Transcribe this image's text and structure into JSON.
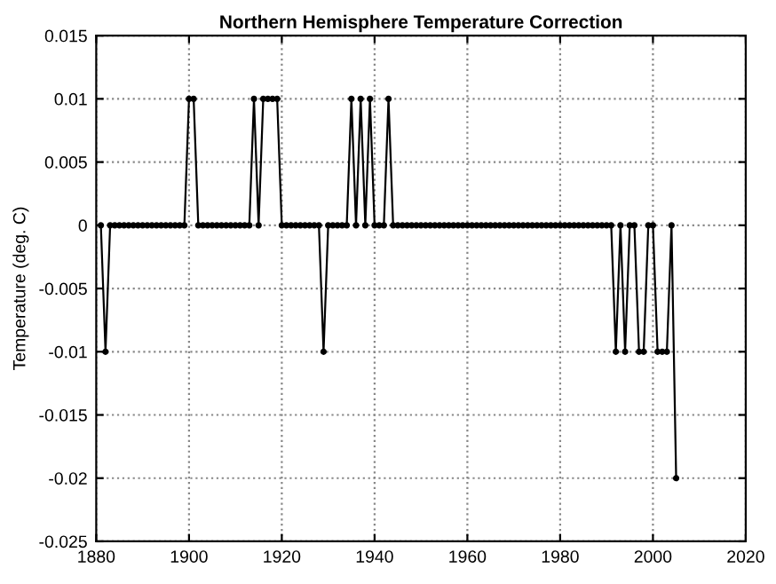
{
  "chart_data": {
    "type": "line",
    "title": "Northern Hemisphere Temperature Correction",
    "ylabel": "Temperature (deg. C)",
    "x": [
      1881,
      1882,
      1883,
      1884,
      1885,
      1886,
      1887,
      1888,
      1889,
      1890,
      1891,
      1892,
      1893,
      1894,
      1895,
      1896,
      1897,
      1898,
      1899,
      1900,
      1901,
      1902,
      1903,
      1904,
      1905,
      1906,
      1907,
      1908,
      1909,
      1910,
      1911,
      1912,
      1913,
      1914,
      1915,
      1916,
      1917,
      1918,
      1919,
      1920,
      1921,
      1922,
      1923,
      1924,
      1925,
      1926,
      1927,
      1928,
      1929,
      1930,
      1931,
      1932,
      1933,
      1934,
      1935,
      1936,
      1937,
      1938,
      1939,
      1940,
      1941,
      1942,
      1943,
      1944,
      1945,
      1946,
      1947,
      1948,
      1949,
      1950,
      1951,
      1952,
      1953,
      1954,
      1955,
      1956,
      1957,
      1958,
      1959,
      1960,
      1961,
      1962,
      1963,
      1964,
      1965,
      1966,
      1967,
      1968,
      1969,
      1970,
      1971,
      1972,
      1973,
      1974,
      1975,
      1976,
      1977,
      1978,
      1979,
      1980,
      1981,
      1982,
      1983,
      1984,
      1985,
      1986,
      1987,
      1988,
      1989,
      1990,
      1991,
      1992,
      1993,
      1994,
      1995,
      1996,
      1997,
      1998,
      1999,
      2000,
      2001,
      2002,
      2003,
      2004,
      2005
    ],
    "series": [
      {
        "color": "#000000",
        "values": [
          0,
          -0.01,
          0,
          0,
          0,
          0,
          0,
          0,
          0,
          0,
          0,
          0,
          0,
          0,
          0,
          0,
          0,
          0,
          0,
          0.01,
          0.01,
          0,
          0,
          0,
          0,
          0,
          0,
          0,
          0,
          0,
          0,
          0,
          0,
          0.01,
          0,
          0.01,
          0.01,
          0.01,
          0.01,
          0,
          0,
          0,
          0,
          0,
          0,
          0,
          0,
          0,
          -0.01,
          0,
          0,
          0,
          0,
          0,
          0.01,
          0,
          0.01,
          0,
          0.01,
          0,
          0,
          0,
          0.01,
          0,
          0,
          0,
          0,
          0,
          0,
          0,
          0,
          0,
          0,
          0,
          0,
          0,
          0,
          0,
          0,
          0,
          0,
          0,
          0,
          0,
          0,
          0,
          0,
          0,
          0,
          0,
          0,
          0,
          0,
          0,
          0,
          0,
          0,
          0,
          0,
          0,
          0,
          0,
          0,
          0,
          0,
          0,
          0,
          0,
          0,
          0,
          0,
          -0.01,
          0,
          -0.01,
          0,
          0,
          -0.01,
          -0.01,
          0,
          0,
          -0.01,
          -0.01,
          -0.01,
          0,
          -0.02
        ]
      }
    ],
    "xlim": [
      1880,
      2020
    ],
    "xticks": [
      1880,
      1900,
      1920,
      1940,
      1960,
      1980,
      2000,
      2020
    ],
    "ylim": [
      -0.025,
      0.015
    ],
    "yticks": [
      -0.025,
      -0.02,
      -0.015,
      -0.01,
      -0.005,
      0,
      0.005,
      0.01,
      0.015
    ],
    "grid": true,
    "marker": "circle",
    "line_style": "solid"
  }
}
